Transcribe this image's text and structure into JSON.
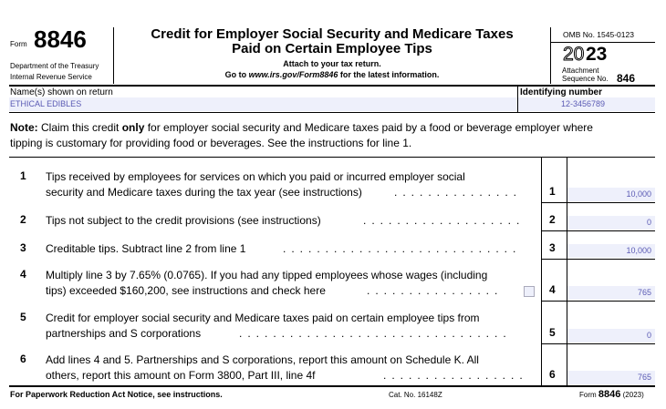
{
  "header": {
    "form_label": "Form",
    "form_number": "8846",
    "dept": "Department of the Treasury",
    "irs": "Internal Revenue Service",
    "title1": "Credit for Employer Social Security and Medicare Taxes",
    "title2": "Paid on Certain Employee Tips",
    "attach": "Attach to your tax return.",
    "goto_prefix": "Go to ",
    "goto_url": "www.irs.gov/Form8846",
    "goto_suffix": " for the latest information.",
    "omb": "OMB No. 1545-0123",
    "year_outline": "20",
    "year_bold": "23",
    "attachment": "Attachment",
    "sequence": "Sequence No.",
    "sequence_no": "846"
  },
  "name_label": "Name(s) shown on return",
  "name_value": "ETHICAL EDIBLES",
  "id_label": "Identifying number",
  "id_value": "12-3456789",
  "note": {
    "bold": "Note:",
    "t1": " Claim this credit ",
    "only": "only",
    "t2": " for employer social security and Medicare taxes paid by a food or beverage employer where",
    "line2": "tipping is customary for providing food or beverages. See the instructions for line 1."
  },
  "lines": [
    {
      "num": "1",
      "text1": "Tips received by employees for services on which you paid or incurred employer social",
      "text2": "security and Medicare taxes during the tax year (see instructions)",
      "amount": "10,000"
    },
    {
      "num": "2",
      "text1": "",
      "text2": "Tips not subject to the credit provisions (see instructions)",
      "amount": "0"
    },
    {
      "num": "3",
      "text1": "",
      "text2": "Creditable tips. Subtract line 2 from line 1",
      "amount": "10,000"
    },
    {
      "num": "4",
      "text1": "Multiply line 3 by 7.65% (0.0765). If you had any tipped employees whose wages (including",
      "text2": "tips) exceeded $160,200, see instructions and check here",
      "amount": "765",
      "checkbox": false
    },
    {
      "num": "5",
      "text1": "Credit for employer social security and Medicare taxes paid on certain employee tips from",
      "text2": "partnerships and S corporations",
      "amount": "0"
    },
    {
      "num": "6",
      "text1": "Add lines 4 and 5. Partnerships and S corporations, report this amount on Schedule K. All",
      "text2": "others, report this amount on Form 3800, Part III, line 4f",
      "amount": "765"
    }
  ],
  "footer": {
    "left": "For Paperwork Reduction Act Notice, see instructions.",
    "cat": "Cat. No. 16148Z",
    "form_label": "Form",
    "form_number": "8846",
    "year": "(2023)"
  }
}
